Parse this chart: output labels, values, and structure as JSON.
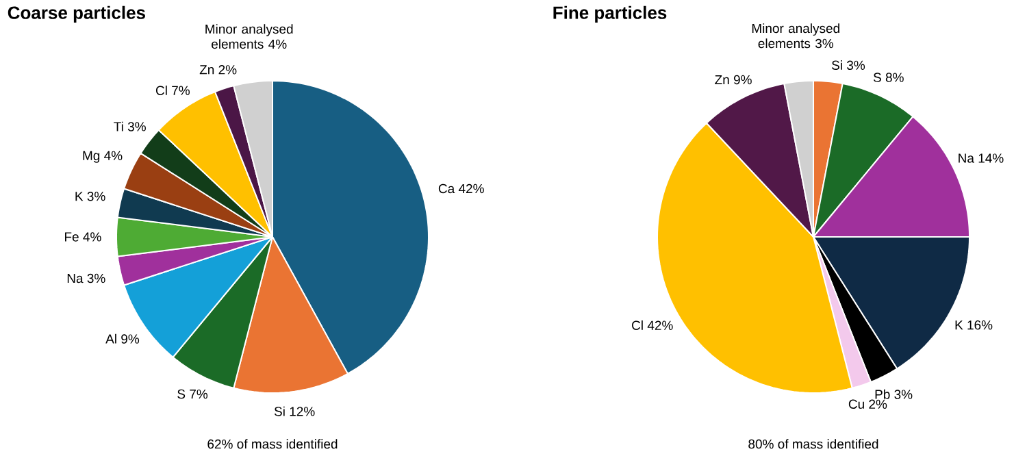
{
  "chart_data": [
    {
      "type": "pie",
      "title": "Coarse particles",
      "categories": [
        "Ca",
        "Si",
        "S",
        "Al",
        "Na",
        "Fe",
        "K",
        "Mg",
        "Ti",
        "Cl",
        "Zn",
        "Minor analysed elements"
      ],
      "values": [
        42,
        12,
        7,
        9,
        3,
        4,
        3,
        4,
        3,
        7,
        2,
        4
      ],
      "value_labels": [
        "42%",
        "12%",
        "7%",
        "9%",
        "3%",
        "4%",
        "3%",
        "4%",
        "3%",
        "7%",
        "2%",
        "4%"
      ],
      "colors": [
        "#175e83",
        "#ea7433",
        "#1b6b27",
        "#14a0d8",
        "#a0309c",
        "#4eab34",
        "#103a50",
        "#9a3f12",
        "#123d19",
        "#ffc000",
        "#4b1646",
        "#d0d0d0"
      ],
      "annotations": [
        "62% of mass identified"
      ]
    },
    {
      "type": "pie",
      "title": "Fine particles",
      "categories": [
        "Si",
        "S",
        "Na",
        "K",
        "Pb",
        "Cu",
        "Cl",
        "Zn",
        "Minor analysed elements"
      ],
      "values": [
        3,
        8,
        14,
        16,
        3,
        2,
        42,
        9,
        3
      ],
      "value_labels": [
        "3%",
        "8%",
        "14%",
        "16%",
        "3%",
        "2%",
        "42%",
        "9%",
        "3%"
      ],
      "colors": [
        "#ea7433",
        "#1b6b27",
        "#a0309c",
        "#0f2a45",
        "#000000",
        "#f3c9ec",
        "#ffc000",
        "#511848",
        "#d0d0d0"
      ],
      "annotations": [
        "80% of mass identified"
      ]
    }
  ]
}
